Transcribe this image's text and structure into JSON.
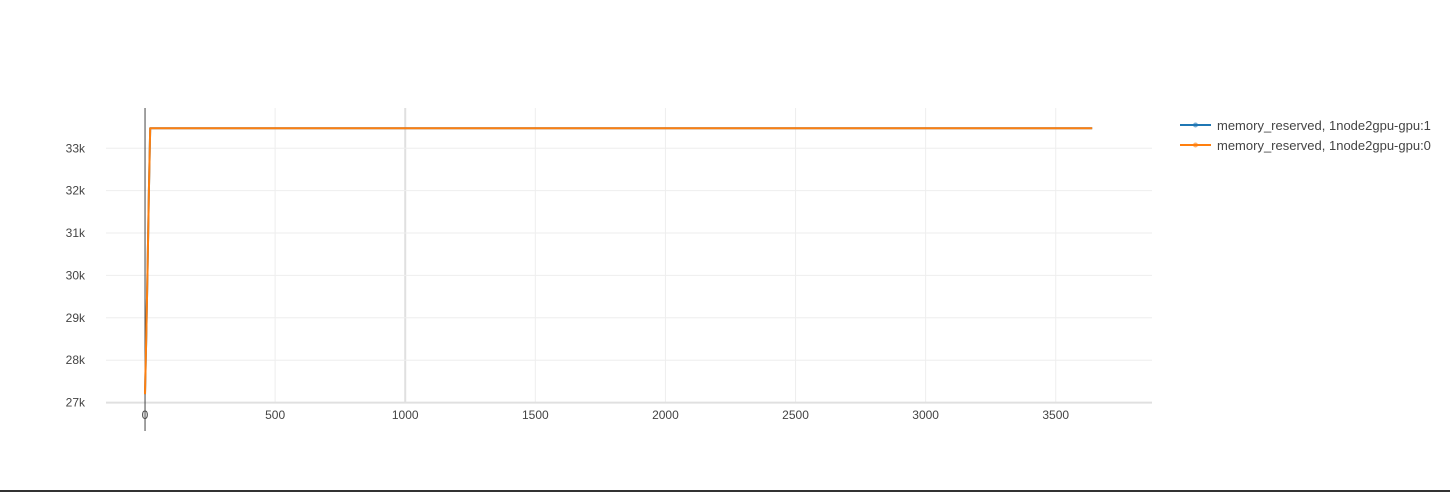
{
  "chart_data": {
    "type": "line",
    "title": "",
    "xlabel": "",
    "ylabel": "",
    "xlim": [
      -150,
      3870
    ],
    "ylim": [
      26990,
      33950
    ],
    "x_ticks": [
      0,
      500,
      1000,
      1500,
      2000,
      2500,
      3000,
      3500
    ],
    "x_tick_labels": [
      "0",
      "500",
      "1000",
      "1500",
      "2000",
      "2500",
      "3000",
      "3500"
    ],
    "y_ticks": [
      27000,
      28000,
      29000,
      30000,
      31000,
      32000,
      33000
    ],
    "y_tick_labels": [
      "27k",
      "28k",
      "29k",
      "30k",
      "31k",
      "32k",
      "33k"
    ],
    "grid": true,
    "legend_position": "top-right",
    "series": [
      {
        "name": "memory_reserved, 1node2gpu-gpu:1",
        "color": "#1f77b4",
        "x": [
          0,
          5,
          10,
          15,
          20,
          3640
        ],
        "y": [
          27200,
          28600,
          30200,
          32000,
          33470,
          33470
        ]
      },
      {
        "name": "memory_reserved, 1node2gpu-gpu:0",
        "color": "#ff7f0e",
        "x": [
          0,
          5,
          10,
          15,
          20,
          3640
        ],
        "y": [
          27200,
          28600,
          30200,
          32000,
          33470,
          33470
        ]
      }
    ]
  }
}
